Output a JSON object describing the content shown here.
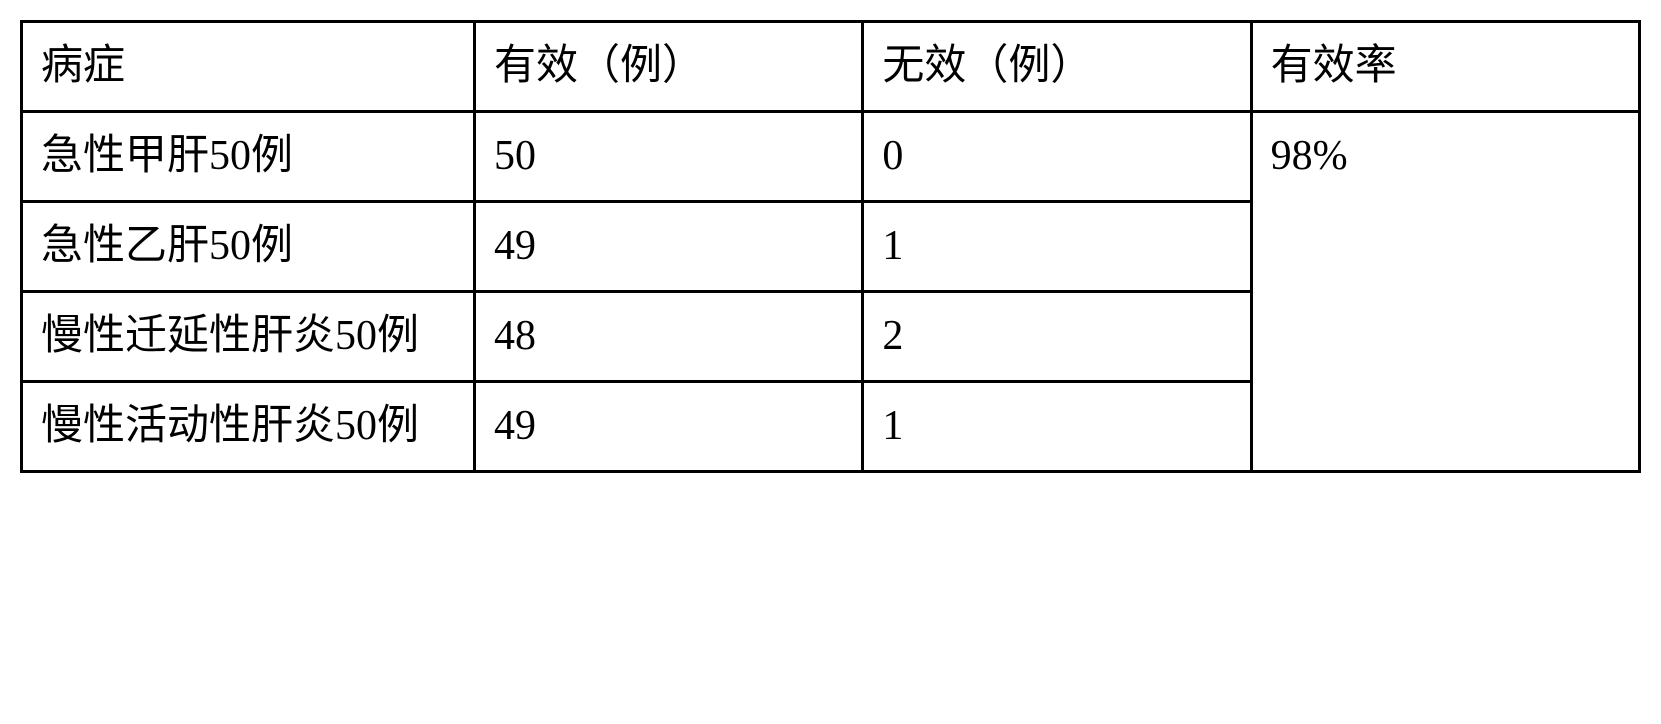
{
  "table": {
    "columns": [
      {
        "header": "病症"
      },
      {
        "header": "有效（例）"
      },
      {
        "header": "无效（例）"
      },
      {
        "header": "有效率"
      }
    ],
    "rows": [
      {
        "disease": "急性甲肝50例",
        "effective": "50",
        "ineffective": "0"
      },
      {
        "disease": "急性乙肝50例",
        "effective": "49",
        "ineffective": "1"
      },
      {
        "disease": "慢性迁延性肝炎50例",
        "effective": "48",
        "ineffective": "2"
      },
      {
        "disease": "慢性活动性肝炎50例",
        "effective": "49",
        "ineffective": "1"
      }
    ],
    "efficacy_rate": "98%",
    "border_color": "#000000",
    "background_color": "#ffffff",
    "font_size": 42,
    "text_color": "#000000"
  }
}
